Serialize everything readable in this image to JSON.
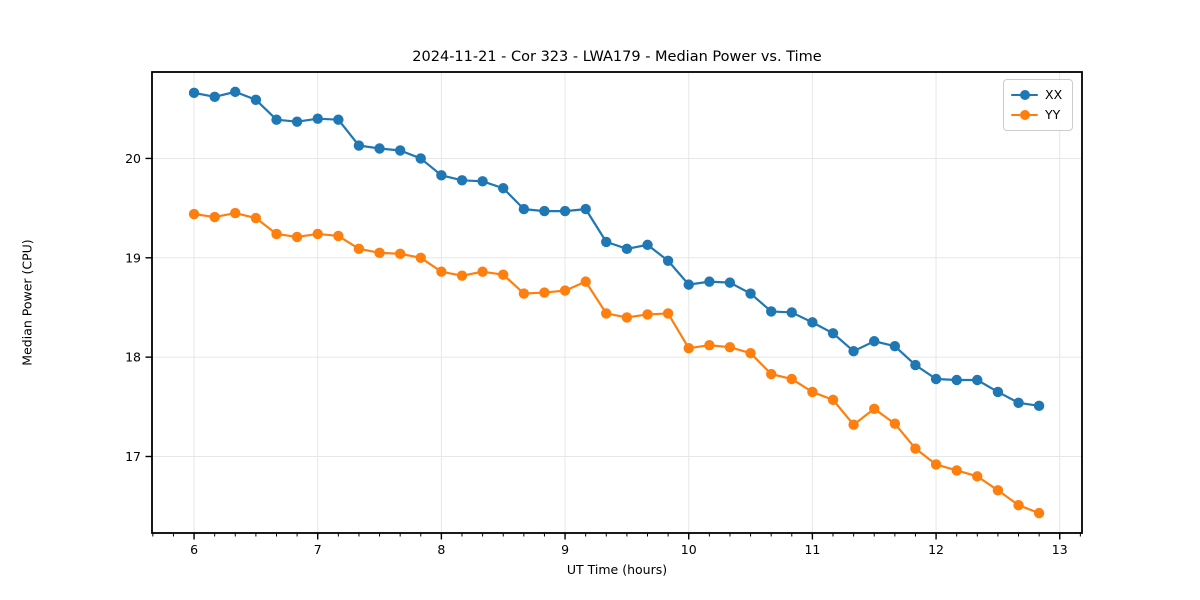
{
  "chart_data": {
    "type": "line",
    "title": "2024-11-21 - Cor 323 - LWA179 - Median Power vs. Time",
    "xlabel": "UT Time (hours)",
    "ylabel": "Median Power (CPU)",
    "xlim": [
      5.66,
      13.18
    ],
    "ylim": [
      16.23,
      20.87
    ],
    "xticks": [
      6,
      7,
      8,
      9,
      10,
      11,
      12,
      13
    ],
    "yticks": [
      17,
      18,
      19,
      20
    ],
    "x_minor_tick_step": 0.166667,
    "grid": true,
    "grid_color": "#e7e7e7",
    "axis_color": "#000000",
    "legend_position": "upper right",
    "x": [
      6.0,
      6.167,
      6.333,
      6.5,
      6.667,
      6.833,
      7.0,
      7.167,
      7.333,
      7.5,
      7.667,
      7.833,
      8.0,
      8.167,
      8.333,
      8.5,
      8.667,
      8.833,
      9.0,
      9.167,
      9.333,
      9.5,
      9.667,
      9.833,
      10.0,
      10.167,
      10.333,
      10.5,
      10.667,
      10.833,
      11.0,
      11.167,
      11.333,
      11.5,
      11.667,
      11.833,
      12.0,
      12.167,
      12.333,
      12.5,
      12.667,
      12.833
    ],
    "series": [
      {
        "name": "XX",
        "color": "#1f77b4",
        "values": [
          20.66,
          20.62,
          20.67,
          20.59,
          20.39,
          20.37,
          20.4,
          20.39,
          20.13,
          20.1,
          20.08,
          20.0,
          19.83,
          19.78,
          19.77,
          19.7,
          19.49,
          19.47,
          19.47,
          19.49,
          19.16,
          19.09,
          19.13,
          18.97,
          18.73,
          18.76,
          18.75,
          18.64,
          18.46,
          18.45,
          18.35,
          18.24,
          18.06,
          18.16,
          18.11,
          17.92,
          17.78,
          17.77,
          17.77,
          17.65,
          17.54,
          17.51
        ]
      },
      {
        "name": "YY",
        "color": "#ff7f0e",
        "values": [
          19.44,
          19.41,
          19.45,
          19.4,
          19.24,
          19.21,
          19.24,
          19.22,
          19.09,
          19.05,
          19.04,
          19.0,
          18.86,
          18.82,
          18.86,
          18.83,
          18.64,
          18.65,
          18.67,
          18.76,
          18.44,
          18.4,
          18.43,
          18.44,
          18.09,
          18.12,
          18.1,
          18.04,
          17.83,
          17.78,
          17.65,
          17.57,
          17.32,
          17.48,
          17.33,
          17.08,
          16.92,
          16.86,
          16.8,
          16.66,
          16.51,
          16.43
        ]
      }
    ]
  }
}
